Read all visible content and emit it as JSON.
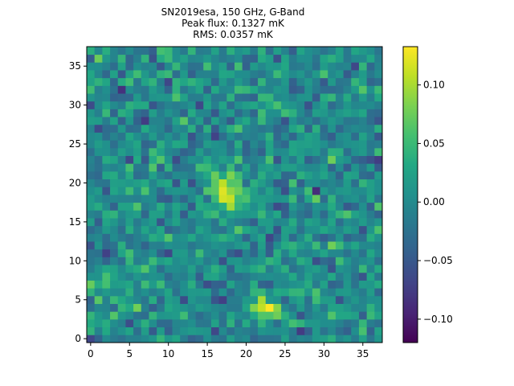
{
  "chart_data": {
    "type": "heatmap",
    "title_lines": [
      "SN2019esa, 150 GHz, G-Band",
      "Peak flux: 0.1327 mK",
      "RMS: 0.0357 mK"
    ],
    "xlabel": "",
    "ylabel": "",
    "xlim": [
      -0.5,
      37.5
    ],
    "ylim": [
      -0.5,
      37.5
    ],
    "x_ticks": [
      0,
      5,
      10,
      15,
      20,
      25,
      30,
      35
    ],
    "y_ticks": [
      0,
      5,
      10,
      15,
      20,
      25,
      30,
      35
    ],
    "grid_size": 38,
    "colormap": "viridis",
    "colorbar": {
      "min": -0.12,
      "max": 0.1327,
      "ticks": [
        0.1,
        0.05,
        0.0,
        -0.05,
        -0.1
      ],
      "tick_labels": [
        "0.10",
        "0.05",
        "0.00",
        "−0.05",
        "−0.10"
      ]
    },
    "peak_flux_mK": 0.1327,
    "rms_mK": 0.0357,
    "sources": [
      {
        "x": 17.5,
        "y": 19.0,
        "amplitude": 0.12,
        "sx": 1.4,
        "sy": 2.0
      },
      {
        "x": 22.5,
        "y": 4.0,
        "amplitude": 0.11,
        "sx": 1.8,
        "sy": 1.0
      }
    ],
    "noise_seed": 2019,
    "noise_sigma": 0.035
  }
}
